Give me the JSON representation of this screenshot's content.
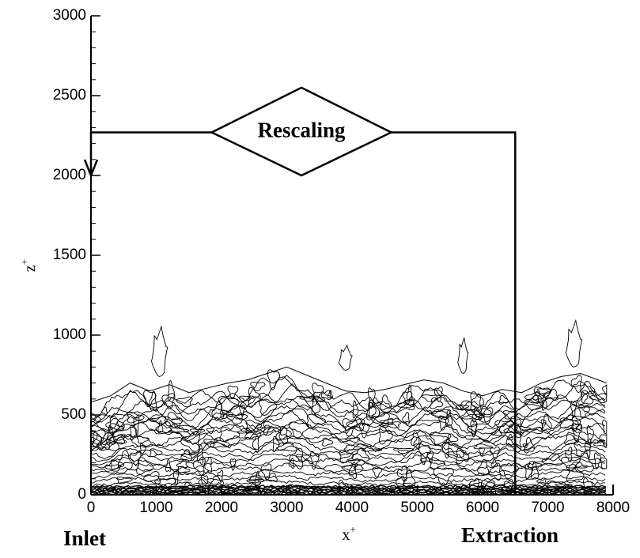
{
  "chart_data": {
    "type": "contour",
    "xlabel": "x",
    "xlabel_sup": "+",
    "ylabel": "z",
    "ylabel_sup": "+",
    "xlim": [
      0,
      8000
    ],
    "ylim": [
      0,
      3000
    ],
    "x_ticks": [
      0,
      1000,
      2000,
      3000,
      4000,
      5000,
      6000,
      7000,
      8000
    ],
    "y_ticks": [
      0,
      500,
      1000,
      1500,
      2000,
      2500,
      3000
    ],
    "x_tick_labels": [
      "0",
      "1000",
      "2000",
      "3000",
      "4000",
      "5000",
      "6000",
      "7000",
      "8000"
    ],
    "y_tick_labels": [
      "0",
      "500",
      "1000",
      "1500",
      "2000",
      "2500",
      "3000"
    ],
    "contour_domain_x": [
      0,
      7900
    ],
    "boundary_layer_edge": [
      [
        0,
        580
      ],
      [
        300,
        620
      ],
      [
        600,
        700
      ],
      [
        900,
        650
      ],
      [
        1200,
        690
      ],
      [
        1500,
        640
      ],
      [
        1800,
        670
      ],
      [
        2100,
        700
      ],
      [
        2400,
        720
      ],
      [
        2700,
        760
      ],
      [
        3000,
        800
      ],
      [
        3300,
        750
      ],
      [
        3600,
        700
      ],
      [
        3900,
        650
      ],
      [
        4200,
        640
      ],
      [
        4500,
        660
      ],
      [
        4800,
        690
      ],
      [
        5100,
        720
      ],
      [
        5400,
        700
      ],
      [
        5700,
        650
      ],
      [
        6000,
        620
      ],
      [
        6300,
        660
      ],
      [
        6600,
        640
      ],
      [
        6900,
        700
      ],
      [
        7200,
        740
      ],
      [
        7500,
        760
      ],
      [
        7900,
        700
      ]
    ],
    "annotations": {
      "recycle_label": "Rescaling",
      "inlet_label": "Inlet",
      "extraction_label": "Extraction",
      "recycle_path": {
        "inlet_x": 0,
        "extraction_x": 6500,
        "loop_z": 2270,
        "arrow_tip_z": 2000,
        "diamond_x_range": [
          1850,
          4600
        ],
        "diamond_z_range": [
          2000,
          2550
        ]
      }
    }
  }
}
